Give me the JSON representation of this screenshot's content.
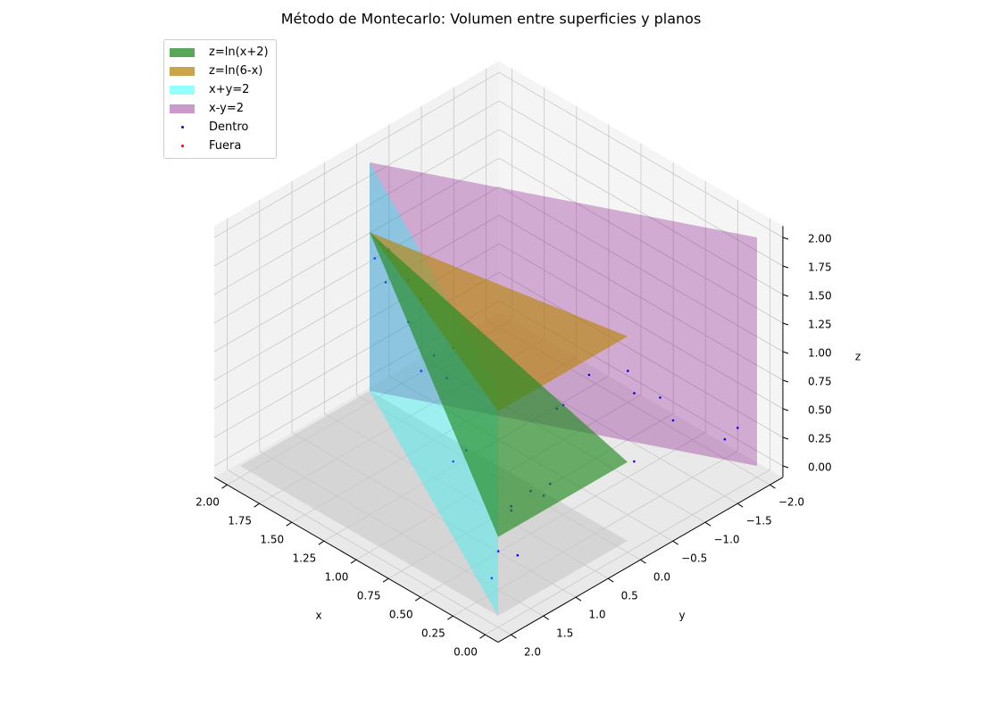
{
  "chart_data": {
    "type": "scatter3d",
    "title": "Método de Montecarlo: Volumen entre superficies y planos",
    "x_label": "x",
    "y_label": "y",
    "z_label": "z",
    "xlim": [
      -0.1,
      2.1
    ],
    "ylim": [
      -2.2,
      2.2
    ],
    "zlim": [
      -0.1,
      2.1
    ],
    "xticks": [
      {
        "value": 0,
        "label": "0.00"
      },
      {
        "value": 0.25,
        "label": "0.25"
      },
      {
        "value": 0.5,
        "label": "0.50"
      },
      {
        "value": 0.75,
        "label": "0.75"
      },
      {
        "value": 1,
        "label": "1.00"
      },
      {
        "value": 1.25,
        "label": "1.25"
      },
      {
        "value": 1.5,
        "label": "1.50"
      },
      {
        "value": 1.75,
        "label": "1.75"
      },
      {
        "value": 2,
        "label": "2.00"
      }
    ],
    "yticks": [
      {
        "value": -2,
        "label": "−2.0"
      },
      {
        "value": -1.5,
        "label": "−1.5"
      },
      {
        "value": -1,
        "label": "−1.0"
      },
      {
        "value": -0.5,
        "label": "−0.5"
      },
      {
        "value": 0,
        "label": "0.0"
      },
      {
        "value": 0.5,
        "label": "0.5"
      },
      {
        "value": 1,
        "label": "1.0"
      },
      {
        "value": 1.5,
        "label": "1.5"
      },
      {
        "value": 2,
        "label": "2.0"
      }
    ],
    "zticks": [
      {
        "value": 0,
        "label": "0.00"
      },
      {
        "value": 0.25,
        "label": "0.25"
      },
      {
        "value": 0.5,
        "label": "0.50"
      },
      {
        "value": 0.75,
        "label": "0.75"
      },
      {
        "value": 1,
        "label": "1.00"
      },
      {
        "value": 1.25,
        "label": "1.25"
      },
      {
        "value": 1.5,
        "label": "1.50"
      },
      {
        "value": 1.75,
        "label": "1.75"
      },
      {
        "value": 2,
        "label": "2.00"
      }
    ],
    "grid": true,
    "legend": "upper left",
    "regions": [
      {
        "color": "#c8c8c8",
        "alpha": 0.6,
        "x": [
          0,
          2,
          2,
          0
        ],
        "y": [
          0,
          0,
          2,
          2
        ],
        "z": [
          0,
          0,
          0,
          0
        ]
      }
    ],
    "surfaces": [
      {
        "name": "x-y=2",
        "color": "#800080",
        "alpha": 0.3,
        "x": [
          2,
          0,
          0,
          2
        ],
        "y": [
          0,
          -2,
          -2,
          0
        ],
        "z": [
          0,
          0,
          2,
          2
        ]
      },
      {
        "name": "x+y=2",
        "color": "#00ffff",
        "alpha": 0.32,
        "x": [
          2,
          0,
          0,
          2
        ],
        "y": [
          0,
          2,
          2,
          0
        ],
        "z": [
          0,
          0,
          2,
          2
        ]
      },
      {
        "name": "z=ln(6-x)",
        "color": "#b8860b",
        "alpha": 0.65,
        "x": [
          0,
          0,
          2
        ],
        "y": [
          0,
          2,
          0
        ],
        "z": [
          1.79,
          1.79,
          1.39
        ]
      },
      {
        "name": "z=ln(x+2)",
        "color": "#228b22",
        "alpha": 0.65,
        "x": [
          0,
          0,
          2
        ],
        "y": [
          0,
          2,
          0
        ],
        "z": [
          0.69,
          0.69,
          1.39
        ]
      }
    ],
    "series": [
      {
        "name": "Dentro",
        "color": "#0000ff",
        "x": [
          0.1,
          0.3,
          0.5,
          0.2,
          0.8,
          1.2,
          1.5,
          1.8,
          1.9,
          1.7,
          0.4,
          0.6,
          0.9,
          1.1,
          0.2,
          0.05,
          0.15,
          0.35,
          0.7,
          1.0,
          1.3,
          1.6,
          0.25,
          0.45,
          0.55,
          0.85,
          1.4,
          1.95,
          0.1,
          0.3
        ],
        "y": [
          1.5,
          1.2,
          0.8,
          -0.5,
          -1.0,
          0.3,
          0.2,
          0.1,
          -0.05,
          0.0,
          -1.5,
          -1.2,
          0.9,
          0.6,
          1.7,
          1.9,
          -1.8,
          -0.8,
          -0.3,
          0.5,
          0.4,
          0.2,
          1.0,
          -1.4,
          0.2,
          -0.7,
          0.4,
          0.02,
          -1.9,
          0.6
        ],
        "z": [
          0.3,
          0.5,
          0.2,
          0.4,
          0.6,
          1.0,
          1.2,
          1.4,
          1.0,
          0.8,
          0.3,
          0.7,
          0.4,
          0.9,
          0.1,
          0.5,
          0.2,
          0.8,
          0.6,
          0.3,
          0.9,
          1.3,
          0.6,
          0.5,
          0.1,
          0.4,
          0.7,
          1.2,
          0.3,
          0.5
        ]
      },
      {
        "name": "Fuera",
        "color": "#ff0000",
        "x": [],
        "y": [],
        "z": []
      }
    ]
  }
}
